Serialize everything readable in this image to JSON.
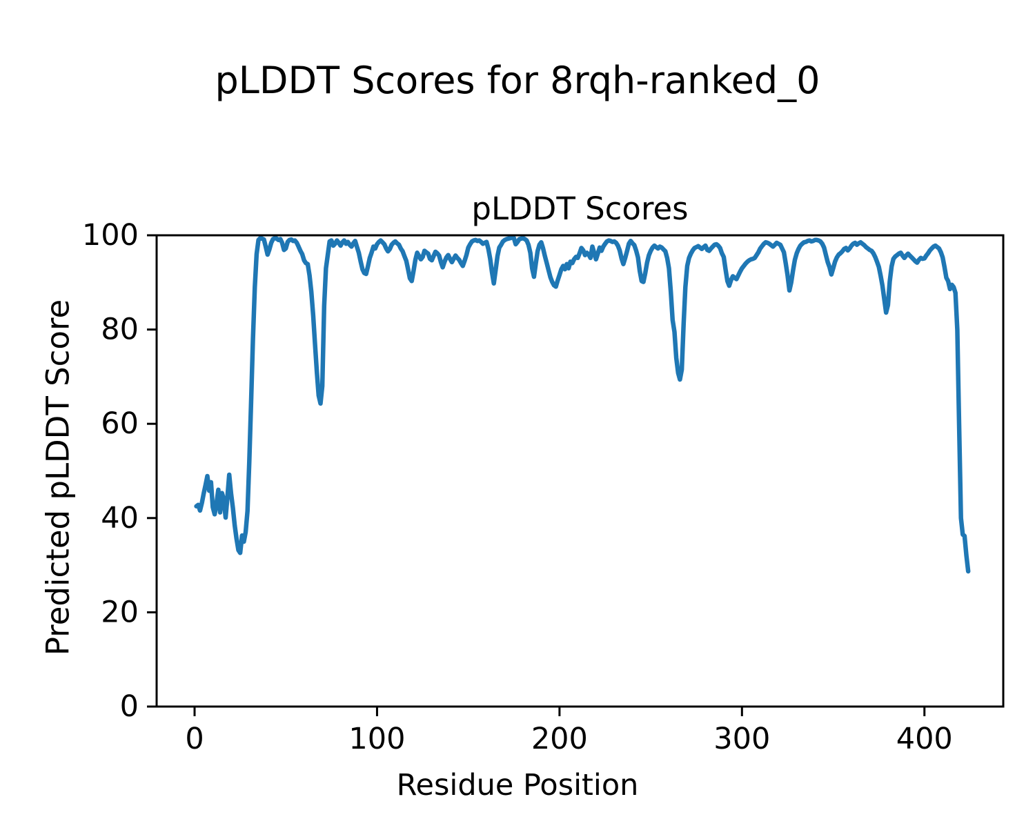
{
  "figure": {
    "suptitle": "pLDDT Scores for 8rqh-ranked_0",
    "axes_title": "pLDDT Scores",
    "xlabel": "Residue Position",
    "ylabel": "Predicted pLDDT Score"
  },
  "chart_data": {
    "type": "line",
    "title": "pLDDT Scores",
    "suptitle": "pLDDT Scores for 8rqh-ranked_0",
    "xlabel": "Residue Position",
    "ylabel": "Predicted pLDDT Score",
    "xlim": [
      -20.8,
      443.2
    ],
    "ylim": [
      0,
      100
    ],
    "xticks": [
      0,
      100,
      200,
      300,
      400
    ],
    "yticks": [
      0,
      20,
      40,
      60,
      80,
      100
    ],
    "grid": false,
    "legend_position": "none",
    "line_color": "#1f77b4",
    "line_width": 6.5,
    "axis_color": "#000000",
    "series": [
      {
        "name": "pLDDT",
        "x_start": 1,
        "x_step": 1,
        "y": [
          42.5,
          42.8,
          41.6,
          43.2,
          45.2,
          47.0,
          48.9,
          45.8,
          47.6,
          42.3,
          40.8,
          43.0,
          46.0,
          41.2,
          45.3,
          44.0,
          40.1,
          44.5,
          49.2,
          45.2,
          42.2,
          38.4,
          35.6,
          33.2,
          32.6,
          36.3,
          35.0,
          37.0,
          41.5,
          52.0,
          65.0,
          78.0,
          89.0,
          96.0,
          99.0,
          99.4,
          99.3,
          99.1,
          97.6,
          95.9,
          97.0,
          98.4,
          99.2,
          99.4,
          99.3,
          99.0,
          99.2,
          98.4,
          96.9,
          97.2,
          98.6,
          99.0,
          99.1,
          98.8,
          98.9,
          98.4,
          97.6,
          96.7,
          96.0,
          94.7,
          94.1,
          93.9,
          91.5,
          88.0,
          83.0,
          77.0,
          71.0,
          66.0,
          64.3,
          68.0,
          85.0,
          93.0,
          95.8,
          98.7,
          98.9,
          97.8,
          98.2,
          98.9,
          98.4,
          97.8,
          98.5,
          98.9,
          98.2,
          98.6,
          98.0,
          97.6,
          98.3,
          98.8,
          97.5,
          96.3,
          94.5,
          92.8,
          92.0,
          91.8,
          93.4,
          95.2,
          96.3,
          97.6,
          97.2,
          98.1,
          98.6,
          98.9,
          98.5,
          98.1,
          97.2,
          96.6,
          97.1,
          98.0,
          98.4,
          98.7,
          98.3,
          98.0,
          97.2,
          96.6,
          95.6,
          94.6,
          92.8,
          90.9,
          90.3,
          92.4,
          94.8,
          96.3,
          95.6,
          94.9,
          95.4,
          96.7,
          96.4,
          96.1,
          95.0,
          94.7,
          95.6,
          96.5,
          96.2,
          95.7,
          94.3,
          93.2,
          94.4,
          95.3,
          95.8,
          95.0,
          94.3,
          95.0,
          95.7,
          95.2,
          94.8,
          94.1,
          93.5,
          94.6,
          95.8,
          97.4,
          98.1,
          98.7,
          98.9,
          99.0,
          98.8,
          98.9,
          98.6,
          98.2,
          98.4,
          98.6,
          97.1,
          95.0,
          92.2,
          89.8,
          92.6,
          95.6,
          97.4,
          98.0,
          98.7,
          99.0,
          99.2,
          99.3,
          99.4,
          99.5,
          99.4,
          98.1,
          98.6,
          99.2,
          99.3,
          99.4,
          99.2,
          98.9,
          98.0,
          96.3,
          93.0,
          91.2,
          94.0,
          96.6,
          98.0,
          98.5,
          97.2,
          95.6,
          94.1,
          92.6,
          91.1,
          90.1,
          89.4,
          89.1,
          90.4,
          91.6,
          92.8,
          93.5,
          92.8,
          93.9,
          93.0,
          94.4,
          94.1,
          94.9,
          95.4,
          95.2,
          96.2,
          97.3,
          96.8,
          95.8,
          96.3,
          95.9,
          95.2,
          97.6,
          96.3,
          94.9,
          96.1,
          97.4,
          96.7,
          97.6,
          98.2,
          98.7,
          98.9,
          98.8,
          98.6,
          98.7,
          98.4,
          97.8,
          96.8,
          95.1,
          93.9,
          95.2,
          96.6,
          98.2,
          98.8,
          98.3,
          97.9,
          96.8,
          95.3,
          92.4,
          90.3,
          90.1,
          92.0,
          94.2,
          95.8,
          96.7,
          97.4,
          97.8,
          97.5,
          97.2,
          97.6,
          97.4,
          97.0,
          96.6,
          95.2,
          93.0,
          88.0,
          82.0,
          79.5,
          74.0,
          70.8,
          69.4,
          71.5,
          81.0,
          89.0,
          93.5,
          95.2,
          96.1,
          96.8,
          97.3,
          97.5,
          97.7,
          97.4,
          97.1,
          97.5,
          97.8,
          96.9,
          96.7,
          97.2,
          97.6,
          98.0,
          98.1,
          97.8,
          97.3,
          96.2,
          95.4,
          92.8,
          90.3,
          89.3,
          90.5,
          91.3,
          91.0,
          90.7,
          91.5,
          92.3,
          93.0,
          93.5,
          94.0,
          94.4,
          94.7,
          94.9,
          95.0,
          95.2,
          95.8,
          96.4,
          97.2,
          97.7,
          98.2,
          98.5,
          98.4,
          98.2,
          97.9,
          97.6,
          98.0,
          98.4,
          98.2,
          98.0,
          97.2,
          96.4,
          94.0,
          91.5,
          88.3,
          90.0,
          92.6,
          94.8,
          96.2,
          97.1,
          97.8,
          98.2,
          98.5,
          98.6,
          98.8,
          98.9,
          98.7,
          98.8,
          99.0,
          99.0,
          98.9,
          98.7,
          98.2,
          97.4,
          95.8,
          94.3,
          93.2,
          91.7,
          93.0,
          94.4,
          95.3,
          95.9,
          96.2,
          96.6,
          97.1,
          97.3,
          96.8,
          97.2,
          97.8,
          98.2,
          98.4,
          98.0,
          98.3,
          98.5,
          98.2,
          97.9,
          97.5,
          97.2,
          96.9,
          96.7,
          96.2,
          95.4,
          94.4,
          93.3,
          91.4,
          89.3,
          86.4,
          83.6,
          85.2,
          90.2,
          93.4,
          95.0,
          95.5,
          95.8,
          96.1,
          96.3,
          95.7,
          95.2,
          95.7,
          96.1,
          95.7,
          95.3,
          94.9,
          94.5,
          94.2,
          94.8,
          95.2,
          95.0,
          95.1,
          95.7,
          96.2,
          96.8,
          97.2,
          97.6,
          97.8,
          97.5,
          97.2,
          96.4,
          95.3,
          93.2,
          91.0,
          90.3,
          88.6,
          89.5,
          89.0,
          87.8,
          80.0,
          60.0,
          40.0,
          36.5,
          36.2,
          32.0,
          28.7
        ]
      }
    ]
  }
}
